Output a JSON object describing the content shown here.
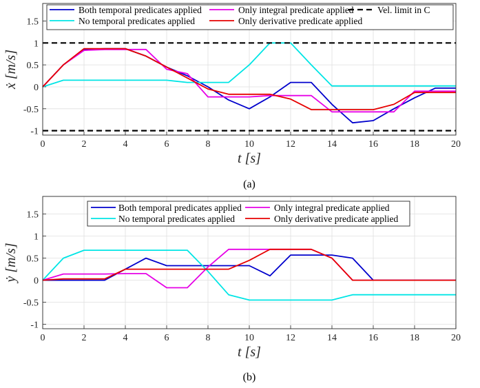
{
  "chart_data": [
    {
      "type": "line",
      "panel_caption": "(a)",
      "xlabel": "t [s]",
      "ylabel": "ẋ [m/s]",
      "xlim": [
        0,
        20
      ],
      "ylim": [
        -1.1,
        1.9
      ],
      "xticks": [
        "0",
        "2",
        "4",
        "6",
        "8",
        "10",
        "12",
        "14",
        "16",
        "18",
        "20"
      ],
      "yticks": [
        "-1",
        "-0.5",
        "0",
        "0.5",
        "1",
        "1.5"
      ],
      "grid": true,
      "legend_position": "top",
      "series": [
        {
          "name": "Both temporal predicates applied",
          "color": "#0000cc",
          "x": [
            0,
            1,
            2,
            3,
            4,
            5,
            6,
            7,
            8,
            9,
            10,
            11,
            12,
            13,
            14,
            15,
            16,
            17,
            18,
            19,
            20
          ],
          "y": [
            0,
            0.5,
            0.85,
            0.87,
            0.87,
            0.7,
            0.45,
            0.25,
            0.0,
            -0.3,
            -0.5,
            -0.23,
            0.1,
            0.1,
            -0.4,
            -0.82,
            -0.77,
            -0.5,
            -0.25,
            -0.03,
            -0.03
          ]
        },
        {
          "name": "No temporal predicates applied",
          "color": "#00e5e5",
          "x": [
            0,
            1,
            2,
            3,
            4,
            5,
            6,
            7,
            8,
            9,
            10,
            11,
            12,
            13,
            14,
            15,
            16,
            17,
            18,
            19,
            20
          ],
          "y": [
            0,
            0.15,
            0.15,
            0.15,
            0.15,
            0.15,
            0.15,
            0.1,
            0.1,
            0.1,
            0.5,
            1.0,
            1.0,
            0.5,
            0.02,
            0.02,
            0.02,
            0.02,
            0.02,
            0.02,
            0.02
          ]
        },
        {
          "name": "Only integral predicate applied",
          "color": "#e600e6",
          "x": [
            0,
            1,
            2,
            3,
            4,
            5,
            6,
            7,
            8,
            9,
            10,
            11,
            12,
            13,
            14,
            15,
            16,
            17,
            18,
            19,
            20
          ],
          "y": [
            0,
            0.5,
            0.83,
            0.85,
            0.85,
            0.85,
            0.4,
            0.3,
            -0.23,
            -0.23,
            -0.23,
            -0.2,
            -0.2,
            -0.2,
            -0.57,
            -0.57,
            -0.57,
            -0.57,
            -0.1,
            -0.1,
            -0.1
          ]
        },
        {
          "name": "Only derivative predicate applied",
          "color": "#e60000",
          "x": [
            0,
            1,
            2,
            3,
            4,
            5,
            6,
            7,
            8,
            9,
            10,
            11,
            12,
            13,
            14,
            15,
            16,
            17,
            18,
            19,
            20
          ],
          "y": [
            0,
            0.5,
            0.87,
            0.87,
            0.87,
            0.7,
            0.45,
            0.2,
            -0.05,
            -0.17,
            -0.17,
            -0.17,
            -0.28,
            -0.52,
            -0.52,
            -0.52,
            -0.52,
            -0.4,
            -0.13,
            -0.13,
            -0.13
          ]
        },
        {
          "name": "Vel. limit in C",
          "color": "#000000",
          "dashed": true,
          "x": [
            0,
            20
          ],
          "y": [
            1,
            1
          ]
        },
        {
          "name": "",
          "color": "#000000",
          "dashed": true,
          "x": [
            0,
            20
          ],
          "y": [
            -1,
            -1
          ]
        }
      ]
    },
    {
      "type": "line",
      "panel_caption": "(b)",
      "xlabel": "t [s]",
      "ylabel": "ẏ [m/s]",
      "xlim": [
        0,
        20
      ],
      "ylim": [
        -1.1,
        1.9
      ],
      "xticks": [
        "0",
        "2",
        "4",
        "6",
        "8",
        "10",
        "12",
        "14",
        "16",
        "18",
        "20"
      ],
      "yticks": [
        "-1",
        "-0.5",
        "0",
        "0.5",
        "1",
        "1.5"
      ],
      "grid": true,
      "legend_position": "top",
      "series": [
        {
          "name": "Both temporal predicates applied",
          "color": "#0000cc",
          "x": [
            0,
            1,
            2,
            3,
            4,
            5,
            6,
            7,
            8,
            9,
            10,
            11,
            12,
            13,
            14,
            15,
            16,
            17,
            18,
            19,
            20
          ],
          "y": [
            0,
            0,
            0,
            0,
            0.25,
            0.5,
            0.33,
            0.33,
            0.33,
            0.33,
            0.33,
            0.1,
            0.57,
            0.57,
            0.57,
            0.5,
            0,
            0,
            0,
            0,
            0
          ]
        },
        {
          "name": "No temporal predicates applied",
          "color": "#00e5e5",
          "x": [
            0,
            1,
            2,
            3,
            4,
            5,
            6,
            7,
            8,
            9,
            10,
            11,
            12,
            13,
            14,
            15,
            16,
            17,
            18,
            19,
            20
          ],
          "y": [
            0,
            0.5,
            0.68,
            0.68,
            0.68,
            0.68,
            0.68,
            0.68,
            0.2,
            -0.33,
            -0.45,
            -0.45,
            -0.45,
            -0.45,
            -0.45,
            -0.33,
            -0.33,
            -0.33,
            -0.33,
            -0.33,
            -0.33
          ]
        },
        {
          "name": "Only integral predicate applied",
          "color": "#e600e6",
          "x": [
            0,
            1,
            2,
            3,
            4,
            5,
            6,
            7,
            8,
            9,
            10,
            11,
            12,
            13,
            14,
            15,
            16,
            17,
            18,
            19,
            20
          ],
          "y": [
            0,
            0.14,
            0.14,
            0.14,
            0.15,
            0.15,
            -0.17,
            -0.17,
            0.3,
            0.7,
            0.7,
            0.7,
            0.7,
            0.7,
            0.5,
            0,
            0,
            0,
            0,
            0,
            0
          ]
        },
        {
          "name": "Only derivative predicate applied",
          "color": "#e60000",
          "x": [
            0,
            1,
            2,
            3,
            4,
            5,
            6,
            7,
            8,
            9,
            10,
            11,
            12,
            13,
            14,
            15,
            16,
            17,
            18,
            19,
            20
          ],
          "y": [
            0,
            0.03,
            0.03,
            0.03,
            0.25,
            0.25,
            0.25,
            0.25,
            0.25,
            0.25,
            0.45,
            0.7,
            0.7,
            0.7,
            0.5,
            0,
            0,
            0,
            0,
            0,
            0
          ]
        }
      ]
    }
  ]
}
